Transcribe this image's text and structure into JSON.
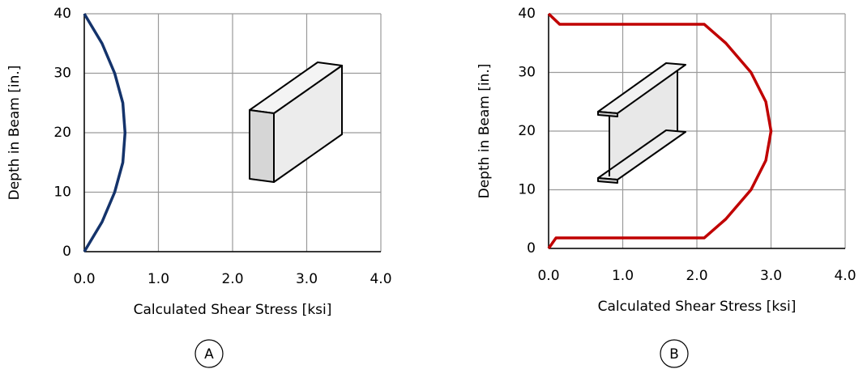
{
  "chart_data": [
    {
      "type": "line",
      "x": [
        0,
        0.24,
        0.41,
        0.52,
        0.55,
        0.52,
        0.41,
        0.24,
        0
      ],
      "series": [
        {
          "color": "#14336b",
          "values": [
            0,
            5,
            10,
            15,
            20,
            25,
            30,
            35,
            40
          ]
        }
      ],
      "xlabel": "Calculated Shear Stress [ksi]",
      "ylabel": "Depth in Beam [in.]",
      "xlim": [
        0,
        4
      ],
      "ylim": [
        0,
        40
      ],
      "xticks": [
        {
          "value": 0,
          "label": "0.0"
        },
        {
          "value": 1,
          "label": "1.0"
        },
        {
          "value": 2,
          "label": "2.0"
        },
        {
          "value": 3,
          "label": "3.0"
        },
        {
          "value": 4,
          "label": "4.0"
        }
      ],
      "yticks": [
        0,
        10,
        20,
        30,
        40
      ],
      "grid": true,
      "panel": "A"
    },
    {
      "type": "line",
      "x": [
        0,
        0.1,
        2.1,
        2.39,
        2.73,
        2.93,
        3.0,
        2.93,
        2.73,
        2.39,
        2.1,
        0.15,
        0
      ],
      "series": [
        {
          "color": "#c00000",
          "values": [
            0,
            1.8,
            1.8,
            5,
            10,
            15,
            20,
            25,
            30,
            35,
            38.2,
            38.2,
            40
          ]
        }
      ],
      "xlabel": "Calculated Shear Stress [ksi]",
      "ylabel": "Depth in Beam [in.]",
      "xlim": [
        0,
        4
      ],
      "ylim": [
        0,
        40
      ],
      "xticks": [
        {
          "value": 0,
          "label": "0.0"
        },
        {
          "value": 1,
          "label": "1.0"
        },
        {
          "value": 2,
          "label": "2.0"
        },
        {
          "value": 3,
          "label": "3.0"
        },
        {
          "value": 4,
          "label": "4.0"
        }
      ],
      "yticks": [
        0,
        10,
        20,
        30,
        40
      ],
      "grid": true,
      "panel": "B"
    }
  ]
}
